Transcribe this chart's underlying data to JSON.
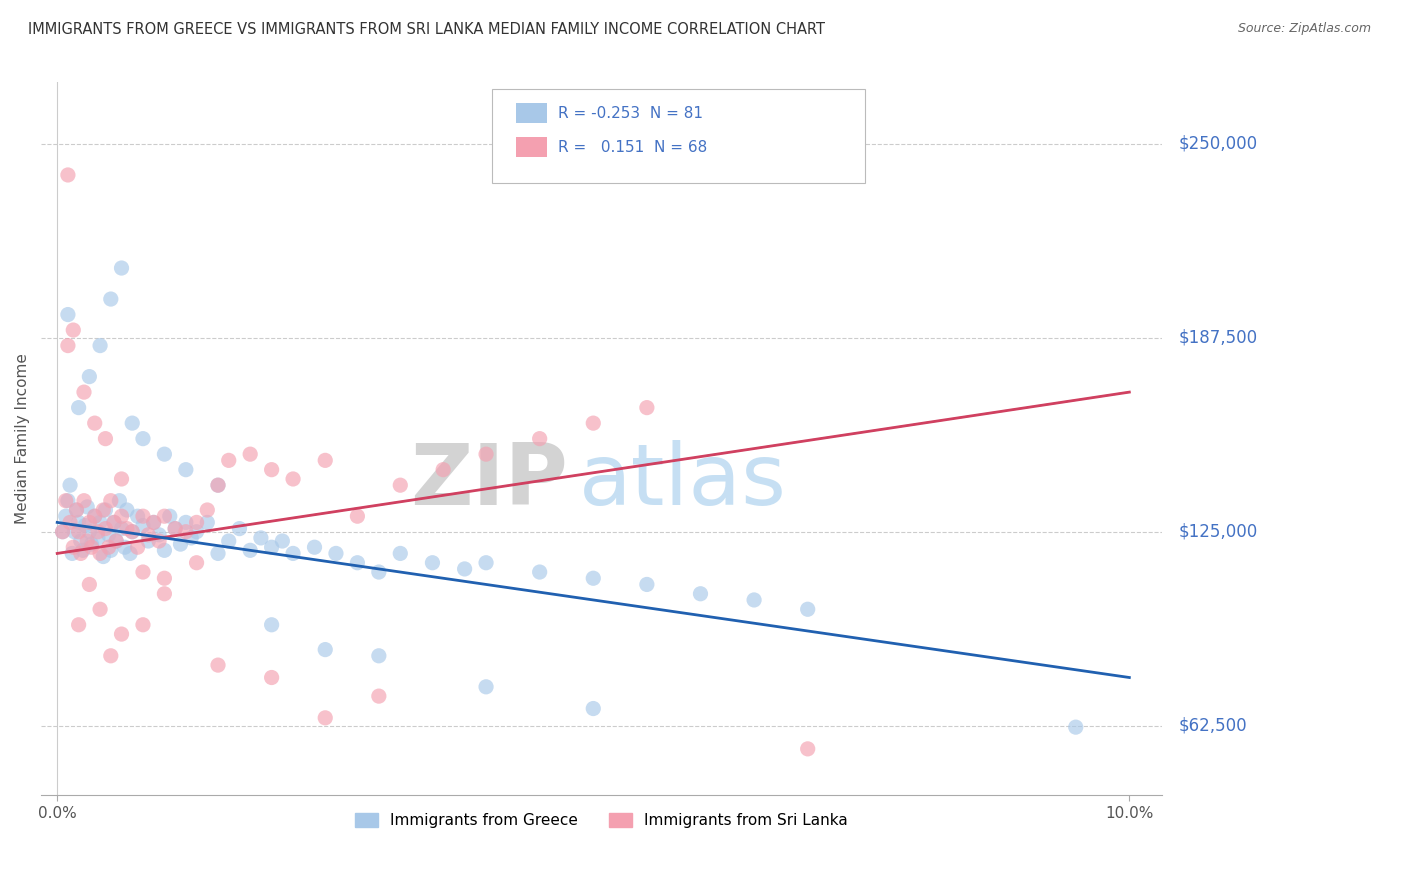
{
  "title": "IMMIGRANTS FROM GREECE VS IMMIGRANTS FROM SRI LANKA MEDIAN FAMILY INCOME CORRELATION CHART",
  "source": "Source: ZipAtlas.com",
  "ylabel": "Median Family Income",
  "yticks": [
    62500,
    125000,
    187500,
    250000
  ],
  "ytick_labels": [
    "$62,500",
    "$125,000",
    "$187,500",
    "$250,000"
  ],
  "xlim": [
    0.0,
    10.0
  ],
  "ylim": [
    40000,
    270000
  ],
  "greece_color": "#a8c8e8",
  "srilanka_color": "#f4a0b0",
  "greece_line_color": "#2060b0",
  "srilanka_line_color": "#d04060",
  "greece_R": -0.253,
  "greece_N": 81,
  "srilanka_R": 0.151,
  "srilanka_N": 68,
  "watermark_zip": "ZIP",
  "watermark_atlas": "atlas",
  "legend_greece": "Immigrants from Greece",
  "legend_srilanka": "Immigrants from Sri Lanka",
  "greece_line_x0": 0.0,
  "greece_line_y0": 128000,
  "greece_line_x1": 10.0,
  "greece_line_y1": 78000,
  "srilanka_line_x0": 0.0,
  "srilanka_line_y0": 118000,
  "srilanka_line_x1": 10.0,
  "srilanka_line_y1": 170000,
  "greece_scatter_x": [
    0.05,
    0.08,
    0.1,
    0.12,
    0.14,
    0.16,
    0.18,
    0.2,
    0.22,
    0.24,
    0.26,
    0.28,
    0.3,
    0.32,
    0.35,
    0.38,
    0.4,
    0.43,
    0.45,
    0.48,
    0.5,
    0.53,
    0.55,
    0.58,
    0.6,
    0.63,
    0.65,
    0.68,
    0.7,
    0.75,
    0.8,
    0.85,
    0.9,
    0.95,
    1.0,
    1.05,
    1.1,
    1.15,
    1.2,
    1.25,
    1.3,
    1.4,
    1.5,
    1.6,
    1.7,
    1.8,
    1.9,
    2.0,
    2.1,
    2.2,
    2.4,
    2.6,
    2.8,
    3.0,
    3.2,
    3.5,
    3.8,
    4.0,
    4.5,
    5.0,
    5.5,
    6.0,
    6.5,
    7.0,
    0.1,
    0.2,
    0.3,
    0.4,
    0.5,
    0.6,
    0.7,
    0.8,
    1.0,
    1.2,
    1.5,
    2.0,
    2.5,
    3.0,
    4.0,
    5.0,
    9.5
  ],
  "greece_scatter_y": [
    125000,
    130000,
    135000,
    140000,
    118000,
    125000,
    132000,
    128000,
    122000,
    119000,
    127000,
    133000,
    125000,
    121000,
    130000,
    123000,
    128000,
    117000,
    132000,
    124000,
    119000,
    128000,
    122000,
    135000,
    126000,
    120000,
    132000,
    118000,
    125000,
    130000,
    127000,
    122000,
    128000,
    124000,
    119000,
    130000,
    126000,
    121000,
    128000,
    123000,
    125000,
    128000,
    118000,
    122000,
    126000,
    119000,
    123000,
    120000,
    122000,
    118000,
    120000,
    118000,
    115000,
    112000,
    118000,
    115000,
    113000,
    115000,
    112000,
    110000,
    108000,
    105000,
    103000,
    100000,
    195000,
    165000,
    175000,
    185000,
    200000,
    210000,
    160000,
    155000,
    150000,
    145000,
    140000,
    95000,
    87000,
    85000,
    75000,
    68000,
    62000
  ],
  "srilanka_scatter_x": [
    0.05,
    0.08,
    0.1,
    0.12,
    0.15,
    0.18,
    0.2,
    0.22,
    0.25,
    0.28,
    0.3,
    0.32,
    0.35,
    0.38,
    0.4,
    0.43,
    0.45,
    0.48,
    0.5,
    0.53,
    0.55,
    0.6,
    0.65,
    0.7,
    0.75,
    0.8,
    0.85,
    0.9,
    0.95,
    1.0,
    1.1,
    1.2,
    1.3,
    1.4,
    1.5,
    1.6,
    1.8,
    2.0,
    2.2,
    2.5,
    2.8,
    3.2,
    3.6,
    4.0,
    4.5,
    5.0,
    5.5,
    0.1,
    0.2,
    0.3,
    0.4,
    0.5,
    0.6,
    0.8,
    1.0,
    1.5,
    2.0,
    3.0,
    7.0,
    0.15,
    0.25,
    0.35,
    0.45,
    0.6,
    0.8,
    1.0,
    1.3,
    2.5
  ],
  "srilanka_scatter_y": [
    125000,
    135000,
    240000,
    128000,
    120000,
    132000,
    125000,
    118000,
    135000,
    122000,
    128000,
    120000,
    130000,
    125000,
    118000,
    132000,
    126000,
    120000,
    135000,
    128000,
    122000,
    130000,
    126000,
    125000,
    120000,
    130000,
    124000,
    128000,
    122000,
    130000,
    126000,
    125000,
    128000,
    132000,
    140000,
    148000,
    150000,
    145000,
    142000,
    148000,
    130000,
    140000,
    145000,
    150000,
    155000,
    160000,
    165000,
    185000,
    95000,
    108000,
    100000,
    85000,
    92000,
    112000,
    105000,
    82000,
    78000,
    72000,
    55000,
    190000,
    170000,
    160000,
    155000,
    142000,
    95000,
    110000,
    115000,
    65000
  ]
}
